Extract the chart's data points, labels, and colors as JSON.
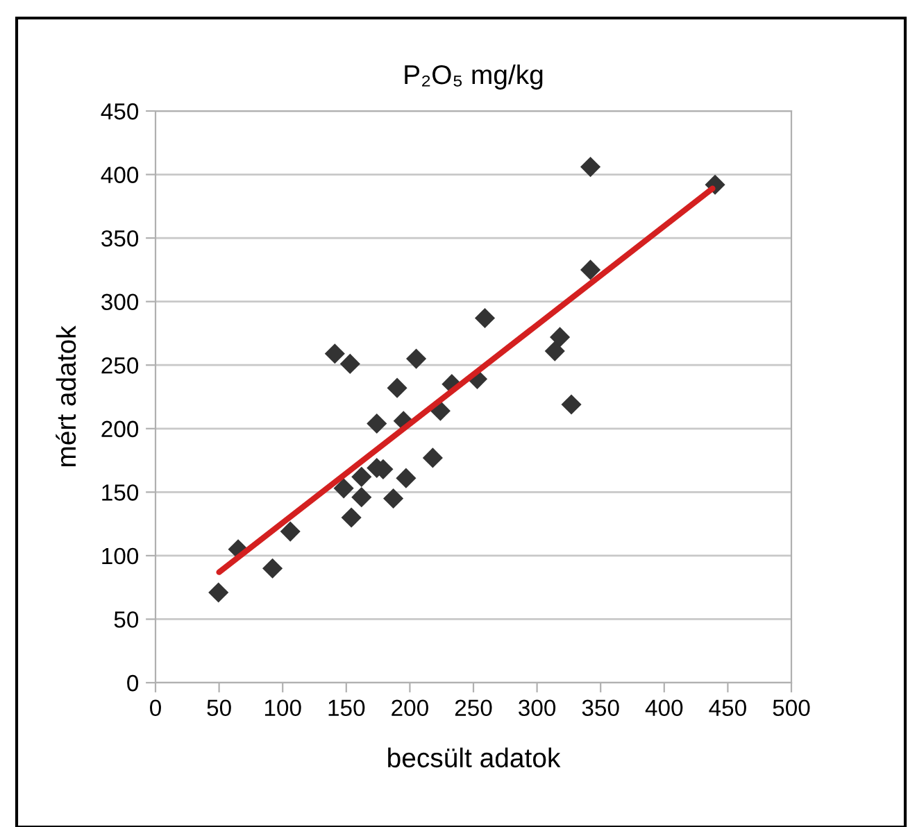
{
  "chart_data": {
    "type": "scatter",
    "title": "P₂O₅ mg/kg",
    "xlabel": "becsült adatok",
    "ylabel": "mért adatok",
    "xlim": [
      0,
      500
    ],
    "xticks": [
      0,
      50,
      100,
      150,
      200,
      250,
      300,
      350,
      400,
      450,
      500
    ],
    "ylim": [
      0,
      450
    ],
    "yticks": [
      0,
      50,
      100,
      150,
      200,
      250,
      300,
      350,
      400,
      450
    ],
    "grid": "y",
    "legend": false,
    "marker": "diamond",
    "series": [
      {
        "color": "#333333",
        "x": [
          49.5,
          65,
          92,
          106,
          141,
          153,
          148,
          154,
          162,
          162,
          174,
          179,
          187,
          174,
          190,
          197,
          195,
          205,
          218,
          224,
          233,
          253,
          259,
          342,
          440,
          342,
          318,
          314,
          327
        ],
        "values": [
          71,
          105,
          90,
          119,
          259,
          251,
          153,
          130,
          162,
          146,
          169,
          168,
          145,
          204,
          232,
          161,
          206,
          255,
          177,
          214,
          235,
          239,
          287,
          406,
          392,
          325,
          272,
          261,
          219
        ]
      },
      {
        "type": "line",
        "color": "#d42020",
        "x": [
          50,
          438
        ],
        "values": [
          87,
          389
        ],
        "marker": "none",
        "line_style": "solid"
      }
    ]
  }
}
